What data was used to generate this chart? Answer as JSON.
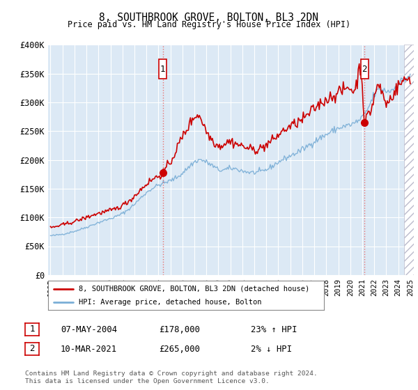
{
  "title": "8, SOUTHBROOK GROVE, BOLTON, BL3 2DN",
  "subtitle": "Price paid vs. HM Land Registry's House Price Index (HPI)",
  "legend_line1": "8, SOUTHBROOK GROVE, BOLTON, BL3 2DN (detached house)",
  "legend_line2": "HPI: Average price, detached house, Bolton",
  "annotation1_label": "1",
  "annotation1_date": "07-MAY-2004",
  "annotation1_price": "£178,000",
  "annotation1_hpi": "23% ↑ HPI",
  "annotation1_year": 2004.37,
  "annotation1_value": 178000,
  "annotation2_label": "2",
  "annotation2_date": "10-MAR-2021",
  "annotation2_price": "£265,000",
  "annotation2_hpi": "2% ↓ HPI",
  "annotation2_year": 2021.19,
  "annotation2_value": 265000,
  "footer": "Contains HM Land Registry data © Crown copyright and database right 2024.\nThis data is licensed under the Open Government Licence v3.0.",
  "ylim": [
    0,
    400000
  ],
  "yticks": [
    0,
    50000,
    100000,
    150000,
    200000,
    250000,
    300000,
    350000,
    400000
  ],
  "ytick_labels": [
    "£0",
    "£50K",
    "£100K",
    "£150K",
    "£200K",
    "£250K",
    "£300K",
    "£350K",
    "£400K"
  ],
  "bg_color": "#dce9f5",
  "red_color": "#cc0000",
  "blue_color": "#7aaed6",
  "grid_color": "#ffffff",
  "hatch_start": 2024.5,
  "xmin": 1995,
  "xmax": 2025.3
}
